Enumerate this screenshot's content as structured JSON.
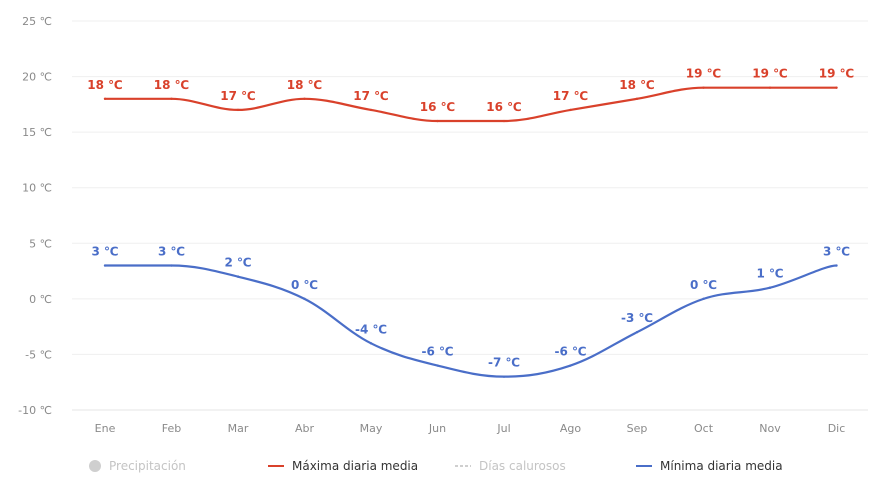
{
  "chart_data": {
    "type": "line",
    "categories": [
      "Ene",
      "Feb",
      "Mar",
      "Abr",
      "May",
      "Jun",
      "Jul",
      "Ago",
      "Sep",
      "Oct",
      "Nov",
      "Dic"
    ],
    "y_ticks": [
      "25 ℃",
      "20 ℃",
      "15 ℃",
      "10 ℃",
      "5 ℃",
      "0 ℃",
      "-5 ℃",
      "-10 ℃"
    ],
    "ylim": [
      -10,
      25
    ],
    "grid": true,
    "legend_position": "bottom",
    "series": [
      {
        "name": "Máxima diaria media",
        "color": "#d9412b",
        "values": [
          18,
          18,
          17,
          18,
          17,
          16,
          16,
          17,
          18,
          19,
          19,
          19
        ],
        "labels": [
          "18 ℃",
          "18 ℃",
          "17 ℃",
          "18 ℃",
          "17 ℃",
          "16 ℃",
          "16 ℃",
          "17 ℃",
          "18 ℃",
          "19 ℃",
          "19 ℃",
          "19 ℃"
        ]
      },
      {
        "name": "Mínima diaria media",
        "color": "#4a6ec8",
        "values": [
          3,
          3,
          2,
          0,
          -4,
          -6,
          -7,
          -6,
          -3,
          0,
          1,
          3
        ],
        "labels": [
          "3 ℃",
          "3 ℃",
          "2 ℃",
          "0 ℃",
          "-4 ℃",
          "-6 ℃",
          "-7 ℃",
          "-6 ℃",
          "-3 ℃",
          "0 ℃",
          "1 ℃",
          "3 ℃"
        ]
      }
    ],
    "legend": [
      {
        "label": "Precipitación",
        "color": "#cfcfcf",
        "marker": "dot",
        "active": false
      },
      {
        "label": "Máxima diaria media",
        "color": "#d9412b",
        "marker": "line",
        "active": true
      },
      {
        "label": "Días calurosos",
        "color": "#cfcfcf",
        "marker": "line",
        "active": false
      },
      {
        "label": "Mínima diaria media",
        "color": "#4a6ec8",
        "marker": "line",
        "active": true
      }
    ]
  }
}
